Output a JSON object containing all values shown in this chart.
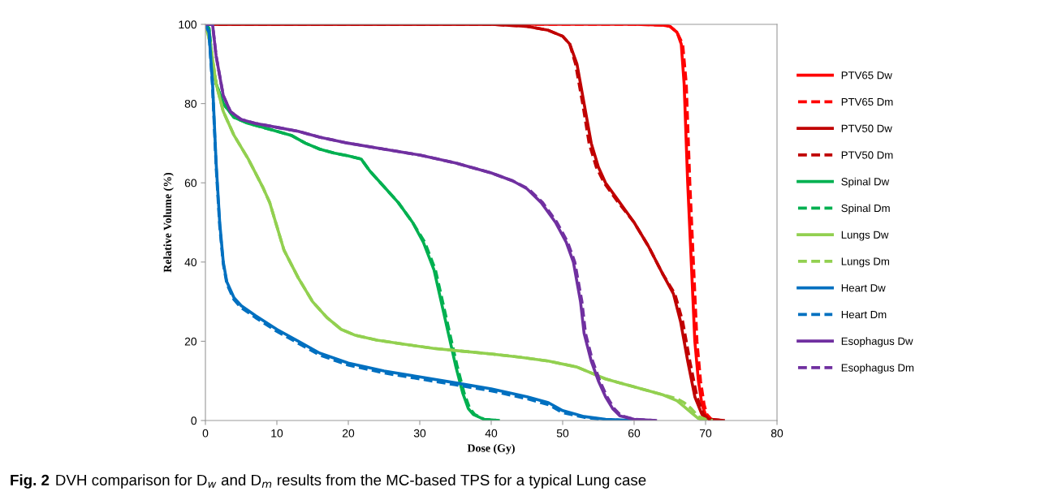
{
  "chart_data": {
    "type": "line",
    "xlabel": "Dose (Gy)",
    "ylabel": "Relative Volume (%)",
    "xlim": [
      0,
      80
    ],
    "ylim": [
      0,
      100
    ],
    "xticks": [
      0,
      10,
      20,
      30,
      40,
      50,
      60,
      70,
      80
    ],
    "yticks": [
      0,
      20,
      40,
      60,
      80,
      100
    ],
    "grid": false,
    "legend": "right",
    "marker": "none",
    "annotations": [
      "Fig. 2",
      "DVH comparison for D$_{w}$ and D$_{m}$ results from the MC-based TPS for a typical Lung case"
    ],
    "series": [
      {
        "name": "PTV65 Dw",
        "color": "#ff0000",
        "line_style": "solid",
        "x": [
          0,
          60,
          64,
          65,
          66,
          66.6,
          67,
          67.5,
          68,
          68.5,
          69,
          69.5,
          70,
          70.5,
          71
        ],
        "values": [
          100,
          100,
          99.8,
          99.5,
          98,
          95,
          85,
          60,
          40,
          20,
          10,
          4,
          1.5,
          0.5,
          0
        ]
      },
      {
        "name": "PTV65 Dm",
        "color": "#ff0000",
        "line_style": "dashed",
        "x": [
          0,
          60,
          64,
          65,
          66,
          66.8,
          67.3,
          67.8,
          68.3,
          68.8,
          69.3,
          69.8,
          70.2,
          70.7,
          71.2
        ],
        "values": [
          100,
          100,
          99.8,
          99.5,
          98,
          95,
          85,
          60,
          40,
          20,
          10,
          4,
          1.5,
          0.5,
          0
        ]
      },
      {
        "name": "PTV50 Dw",
        "color": "#c00000",
        "line_style": "solid",
        "x": [
          0,
          40,
          45,
          48,
          50,
          51,
          52,
          53,
          54,
          55,
          56,
          58,
          60,
          62,
          64,
          65.5,
          66.5,
          67.5,
          68.5,
          69.5,
          70.5,
          72.5
        ],
        "values": [
          100,
          100,
          99.5,
          98.5,
          97,
          95,
          90,
          80,
          70,
          64,
          60,
          55,
          50,
          44,
          37,
          32,
          25,
          15,
          6,
          1.5,
          0.3,
          0
        ]
      },
      {
        "name": "PTV50 Dm",
        "color": "#c00000",
        "line_style": "dashed",
        "x": [
          0,
          40,
          45,
          48,
          50,
          51,
          51.8,
          52.8,
          53.7,
          54.7,
          55.8,
          57.8,
          60,
          62,
          64,
          65.7,
          66.8,
          67.8,
          68.8,
          69.7,
          70.6,
          72.5
        ],
        "values": [
          100,
          100,
          99.5,
          98.5,
          97,
          95,
          90,
          80,
          70,
          64,
          60,
          55,
          50,
          44,
          37,
          32,
          25,
          15,
          6,
          1.5,
          0.3,
          0
        ]
      },
      {
        "name": "Spinal Dw",
        "color": "#00b050",
        "line_style": "solid",
        "x": [
          0,
          0.5,
          1,
          1.5,
          2.5,
          4,
          6,
          8,
          10,
          12,
          14,
          16,
          18,
          20,
          21.8,
          23,
          25,
          27,
          29,
          30.5,
          32,
          33,
          34,
          35,
          36,
          36.8,
          37.5,
          39,
          41
        ],
        "values": [
          100,
          99,
          90,
          85,
          80,
          76.5,
          75,
          74,
          73,
          72,
          70,
          68.5,
          67.5,
          66.8,
          66,
          63,
          59,
          55,
          50,
          45,
          38,
          30,
          22,
          14,
          7,
          3,
          1.5,
          0.3,
          0
        ]
      },
      {
        "name": "Spinal Dm",
        "color": "#00b050",
        "line_style": "dashed",
        "x": [
          0,
          0.5,
          1,
          1.5,
          2.5,
          4,
          6,
          8,
          10,
          12,
          14,
          16,
          18,
          20,
          21.8,
          23,
          25,
          27,
          29,
          30.7,
          32.2,
          33.2,
          34.2,
          35.2,
          36.2,
          37,
          37.7,
          39,
          41
        ],
        "values": [
          100,
          99,
          90,
          85,
          80,
          76.5,
          75,
          74,
          73,
          72,
          70,
          68.5,
          67.5,
          66.8,
          66,
          63,
          59,
          55,
          50,
          45,
          38,
          30,
          22,
          14,
          7,
          3,
          1.5,
          0.3,
          0
        ]
      },
      {
        "name": "Lungs Dw",
        "color": "#92d050",
        "line_style": "solid",
        "x": [
          0,
          0.7,
          1.5,
          2.5,
          4,
          6,
          8,
          9,
          10,
          11,
          13,
          15,
          17,
          19,
          21,
          24,
          28,
          32,
          36,
          40,
          44,
          48,
          52,
          56,
          60,
          64,
          66,
          67,
          68,
          69,
          70
        ],
        "values": [
          100,
          95,
          85,
          78,
          72,
          66,
          59,
          55,
          49,
          43,
          36,
          30,
          26,
          23,
          21.5,
          20.3,
          19.2,
          18.2,
          17.5,
          16.8,
          16,
          15,
          13.5,
          10.5,
          8.5,
          6.5,
          5,
          3.5,
          2,
          0.5,
          0
        ]
      },
      {
        "name": "Lungs Dm",
        "color": "#92d050",
        "line_style": "dashed",
        "x": [
          0,
          0.7,
          1.5,
          2.5,
          4,
          6,
          8,
          9,
          10,
          11,
          13,
          15,
          17,
          19,
          21,
          24,
          28,
          32,
          36,
          40,
          44,
          48,
          52,
          56,
          60,
          64,
          66,
          67,
          68,
          69,
          70,
          71
        ],
        "values": [
          100,
          95,
          85,
          78,
          72,
          66,
          59,
          55,
          49,
          43,
          36,
          30,
          26,
          23,
          21.5,
          20.3,
          19.2,
          18.2,
          17.5,
          16.8,
          16,
          15,
          13.5,
          10.5,
          8.5,
          6.5,
          5.5,
          4.5,
          3,
          1,
          0.3,
          0
        ]
      },
      {
        "name": "Heart Dw",
        "color": "#0070c0",
        "line_style": "solid",
        "x": [
          0,
          0.5,
          1,
          1.5,
          2,
          2.5,
          3,
          4,
          5,
          7,
          10,
          13,
          16,
          20,
          25,
          30,
          35,
          40,
          45,
          48,
          50,
          53,
          56,
          60
        ],
        "values": [
          100,
          98,
          85,
          65,
          50,
          40,
          35,
          31,
          29,
          26.5,
          23,
          20,
          17,
          14.5,
          12.5,
          11,
          9.5,
          8,
          6,
          4.5,
          2.5,
          1,
          0.3,
          0
        ]
      },
      {
        "name": "Heart Dm",
        "color": "#0070c0",
        "line_style": "dashed",
        "x": [
          0,
          0.5,
          1,
          1.5,
          2,
          2.5,
          3,
          4,
          5,
          7,
          10,
          13,
          16,
          20,
          25,
          30,
          35,
          40,
          45,
          48,
          50,
          53,
          56,
          60
        ],
        "values": [
          100,
          98,
          84,
          64,
          49,
          39.5,
          34.5,
          30.5,
          28.5,
          26,
          22.5,
          19.5,
          16.5,
          14,
          12,
          10.5,
          9,
          7.5,
          5.5,
          4,
          2,
          0.8,
          0.2,
          0
        ]
      },
      {
        "name": "Esophagus Dw",
        "color": "#7030a0",
        "line_style": "solid",
        "x": [
          0,
          1,
          1.5,
          2.5,
          3.5,
          5,
          7,
          10,
          13,
          16,
          20,
          25,
          30,
          35,
          40,
          43,
          45,
          47,
          49,
          50.5,
          51.5,
          52.5,
          53,
          54,
          55,
          56,
          57,
          58,
          60,
          63
        ],
        "values": [
          100,
          100,
          92,
          82,
          78,
          76,
          75,
          74,
          73,
          71.5,
          70,
          68.5,
          67,
          65,
          62.5,
          60.5,
          58.5,
          55,
          50,
          45,
          40,
          30,
          22,
          15,
          10,
          6,
          3,
          1.2,
          0.3,
          0
        ]
      },
      {
        "name": "Esophagus Dm",
        "color": "#7030a0",
        "line_style": "dashed",
        "x": [
          0,
          1,
          1.5,
          2.5,
          3.5,
          5,
          7,
          10,
          13,
          16,
          20,
          25,
          30,
          35,
          40,
          43,
          45.2,
          47.2,
          49.2,
          50.7,
          51.7,
          52.7,
          53.2,
          54.2,
          55.2,
          56.2,
          57.2,
          58.2,
          60,
          63
        ],
        "values": [
          100,
          100,
          92,
          82,
          78,
          76,
          75,
          74,
          73,
          71.5,
          70,
          68.5,
          67,
          65,
          62.5,
          60.5,
          58.5,
          55,
          50,
          45,
          40,
          30,
          22,
          15,
          10,
          6,
          3,
          1.2,
          0.3,
          0
        ]
      }
    ]
  }
}
